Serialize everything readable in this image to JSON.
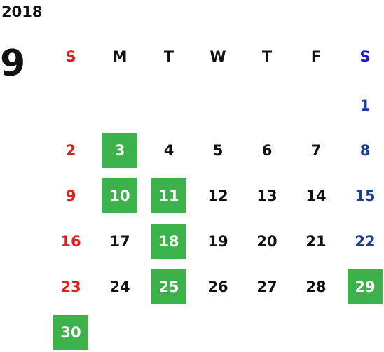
{
  "calendar": {
    "year": "2018",
    "month": "9",
    "weekdays": [
      "S",
      "M",
      "T",
      "W",
      "T",
      "F",
      "S"
    ],
    "days": [
      "1",
      "2",
      "3",
      "4",
      "5",
      "6",
      "7",
      "8",
      "9",
      "10",
      "11",
      "12",
      "13",
      "14",
      "15",
      "16",
      "17",
      "18",
      "19",
      "20",
      "21",
      "22",
      "23",
      "24",
      "25",
      "26",
      "27",
      "28",
      "29",
      "30"
    ],
    "highlighted_days": [
      "3",
      "10",
      "11",
      "18",
      "25",
      "29",
      "30"
    ],
    "colors": {
      "sunday": "#e01e1e",
      "saturday_header": "#1c1ce0",
      "saturday": "#1c3f94",
      "highlight": "#3cb34a",
      "text": "#111111"
    }
  }
}
